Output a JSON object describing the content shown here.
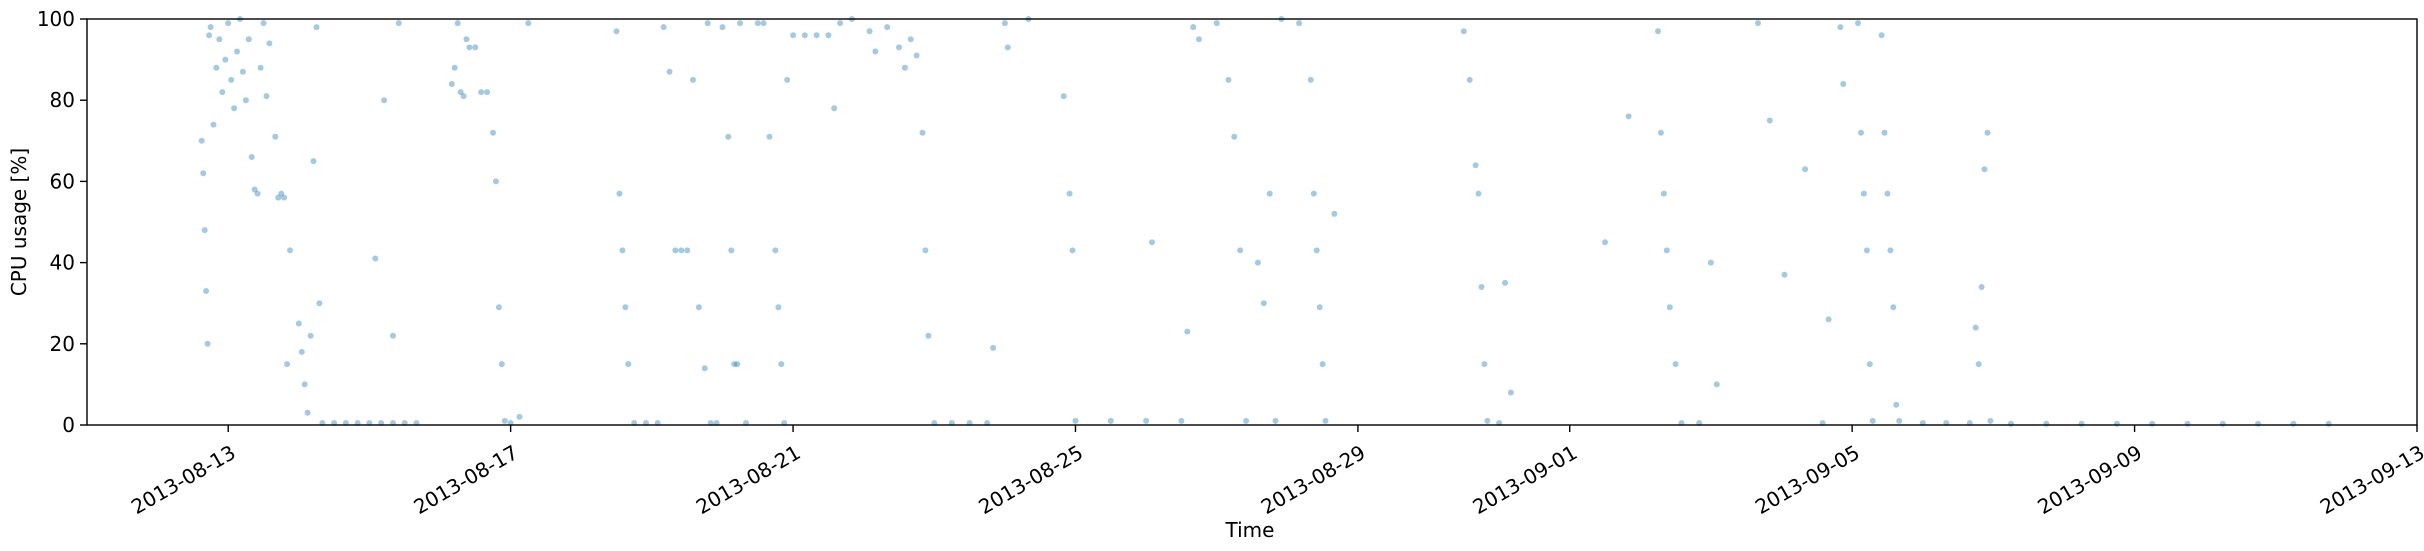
{
  "chart_data": {
    "type": "scatter",
    "title": "",
    "xlabel": "Time",
    "ylabel": "CPU usage [%]",
    "x_type": "date",
    "xlim": [
      "2013-08-11T00:00",
      "2013-09-13T00:00"
    ],
    "ylim": [
      0,
      100
    ],
    "grid": false,
    "legend": "none",
    "x_ticks": [
      "2013-08-13",
      "2013-08-17",
      "2013-08-21",
      "2013-08-25",
      "2013-08-29",
      "2013-09-01",
      "2013-09-05",
      "2013-09-09",
      "2013-09-13"
    ],
    "y_ticks": [
      0,
      20,
      40,
      60,
      80,
      100
    ],
    "colors": {
      "points": "#1f77b4",
      "axes": "#000000"
    },
    "point_opacity": 0.4,
    "point_style": "small translucent dots",
    "series": [
      {
        "values": [
          {
            "x": "2013-08-12T15:00",
            "y": 70
          },
          {
            "x": "2013-08-12T15:30",
            "y": 62
          },
          {
            "x": "2013-08-12T16:00",
            "y": 48
          },
          {
            "x": "2013-08-12T16:30",
            "y": 33
          },
          {
            "x": "2013-08-12T17:00",
            "y": 20
          },
          {
            "x": "2013-08-12T17:30",
            "y": 96
          },
          {
            "x": "2013-08-12T18:00",
            "y": 98
          },
          {
            "x": "2013-08-12T19:00",
            "y": 74
          },
          {
            "x": "2013-08-12T20:00",
            "y": 88
          },
          {
            "x": "2013-08-12T21:00",
            "y": 95
          },
          {
            "x": "2013-08-12T22:00",
            "y": 82
          },
          {
            "x": "2013-08-12T23:00",
            "y": 90
          },
          {
            "x": "2013-08-13T00:00",
            "y": 99
          },
          {
            "x": "2013-08-13T01:00",
            "y": 85
          },
          {
            "x": "2013-08-13T02:00",
            "y": 78
          },
          {
            "x": "2013-08-13T03:00",
            "y": 92
          },
          {
            "x": "2013-08-13T04:00",
            "y": 100
          },
          {
            "x": "2013-08-13T05:00",
            "y": 87
          },
          {
            "x": "2013-08-13T06:00",
            "y": 80
          },
          {
            "x": "2013-08-13T07:00",
            "y": 95
          },
          {
            "x": "2013-08-13T08:00",
            "y": 66
          },
          {
            "x": "2013-08-13T09:00",
            "y": 58
          },
          {
            "x": "2013-08-13T10:00",
            "y": 57
          },
          {
            "x": "2013-08-13T11:00",
            "y": 88
          },
          {
            "x": "2013-08-13T12:00",
            "y": 99
          },
          {
            "x": "2013-08-13T13:00",
            "y": 81
          },
          {
            "x": "2013-08-13T14:00",
            "y": 94
          },
          {
            "x": "2013-08-13T16:00",
            "y": 71
          },
          {
            "x": "2013-08-13T17:00",
            "y": 56
          },
          {
            "x": "2013-08-13T18:00",
            "y": 57
          },
          {
            "x": "2013-08-13T19:00",
            "y": 56
          },
          {
            "x": "2013-08-13T20:00",
            "y": 15
          },
          {
            "x": "2013-08-13T21:00",
            "y": 43
          },
          {
            "x": "2013-08-14T00:00",
            "y": 25
          },
          {
            "x": "2013-08-14T01:00",
            "y": 18
          },
          {
            "x": "2013-08-14T02:00",
            "y": 10
          },
          {
            "x": "2013-08-14T03:00",
            "y": 3
          },
          {
            "x": "2013-08-14T04:00",
            "y": 22
          },
          {
            "x": "2013-08-14T05:00",
            "y": 65
          },
          {
            "x": "2013-08-14T06:00",
            "y": 98
          },
          {
            "x": "2013-08-14T07:00",
            "y": 30
          },
          {
            "x": "2013-08-14T08:00",
            "y": 0.5
          },
          {
            "x": "2013-08-14T12:00",
            "y": 0.5
          },
          {
            "x": "2013-08-14T16:00",
            "y": 0.5
          },
          {
            "x": "2013-08-14T20:00",
            "y": 0.5
          },
          {
            "x": "2013-08-15T00:00",
            "y": 0.5
          },
          {
            "x": "2013-08-15T04:00",
            "y": 0.5
          },
          {
            "x": "2013-08-15T08:00",
            "y": 0.5
          },
          {
            "x": "2013-08-15T12:00",
            "y": 0.5
          },
          {
            "x": "2013-08-15T16:00",
            "y": 0.5
          },
          {
            "x": "2013-08-15T02:00",
            "y": 41
          },
          {
            "x": "2013-08-15T05:00",
            "y": 80
          },
          {
            "x": "2013-08-15T08:00",
            "y": 22
          },
          {
            "x": "2013-08-15T10:00",
            "y": 99
          },
          {
            "x": "2013-08-16T04:00",
            "y": 84
          },
          {
            "x": "2013-08-16T05:00",
            "y": 88
          },
          {
            "x": "2013-08-16T06:00",
            "y": 99
          },
          {
            "x": "2013-08-16T07:00",
            "y": 82
          },
          {
            "x": "2013-08-16T08:00",
            "y": 81
          },
          {
            "x": "2013-08-16T09:00",
            "y": 95
          },
          {
            "x": "2013-08-16T10:00",
            "y": 93
          },
          {
            "x": "2013-08-16T12:00",
            "y": 93
          },
          {
            "x": "2013-08-16T14:00",
            "y": 82
          },
          {
            "x": "2013-08-16T16:00",
            "y": 82
          },
          {
            "x": "2013-08-16T18:00",
            "y": 72
          },
          {
            "x": "2013-08-16T19:00",
            "y": 60
          },
          {
            "x": "2013-08-16T20:00",
            "y": 29
          },
          {
            "x": "2013-08-16T21:00",
            "y": 15
          },
          {
            "x": "2013-08-16T22:00",
            "y": 1
          },
          {
            "x": "2013-08-17T00:00",
            "y": 0.5
          },
          {
            "x": "2013-08-17T03:00",
            "y": 2
          },
          {
            "x": "2013-08-17T06:00",
            "y": 99
          },
          {
            "x": "2013-08-18T12:00",
            "y": 97
          },
          {
            "x": "2013-08-18T13:00",
            "y": 57
          },
          {
            "x": "2013-08-18T14:00",
            "y": 43
          },
          {
            "x": "2013-08-18T15:00",
            "y": 29
          },
          {
            "x": "2013-08-18T16:00",
            "y": 15
          },
          {
            "x": "2013-08-18T18:00",
            "y": 0.5
          },
          {
            "x": "2013-08-18T22:00",
            "y": 0.5
          },
          {
            "x": "2013-08-19T02:00",
            "y": 0.5
          },
          {
            "x": "2013-08-19T04:00",
            "y": 98
          },
          {
            "x": "2013-08-19T06:00",
            "y": 87
          },
          {
            "x": "2013-08-19T08:00",
            "y": 43
          },
          {
            "x": "2013-08-19T10:00",
            "y": 43
          },
          {
            "x": "2013-08-19T12:00",
            "y": 43
          },
          {
            "x": "2013-08-19T14:00",
            "y": 85
          },
          {
            "x": "2013-08-19T16:00",
            "y": 29
          },
          {
            "x": "2013-08-19T18:00",
            "y": 14
          },
          {
            "x": "2013-08-19T19:00",
            "y": 99
          },
          {
            "x": "2013-08-19T20:00",
            "y": 0.5
          },
          {
            "x": "2013-08-19T22:00",
            "y": 0.5
          },
          {
            "x": "2013-08-20T00:00",
            "y": 98
          },
          {
            "x": "2013-08-20T02:00",
            "y": 71
          },
          {
            "x": "2013-08-20T03:00",
            "y": 43
          },
          {
            "x": "2013-08-20T04:00",
            "y": 15
          },
          {
            "x": "2013-08-20T05:00",
            "y": 15
          },
          {
            "x": "2013-08-20T06:00",
            "y": 99
          },
          {
            "x": "2013-08-20T08:00",
            "y": 0.5
          },
          {
            "x": "2013-08-20T12:00",
            "y": 99
          },
          {
            "x": "2013-08-20T14:00",
            "y": 99
          },
          {
            "x": "2013-08-20T16:00",
            "y": 71
          },
          {
            "x": "2013-08-20T18:00",
            "y": 43
          },
          {
            "x": "2013-08-20T19:00",
            "y": 29
          },
          {
            "x": "2013-08-20T20:00",
            "y": 15
          },
          {
            "x": "2013-08-20T21:00",
            "y": 0.5
          },
          {
            "x": "2013-08-20T22:00",
            "y": 85
          },
          {
            "x": "2013-08-21T00:00",
            "y": 96
          },
          {
            "x": "2013-08-21T04:00",
            "y": 96
          },
          {
            "x": "2013-08-21T08:00",
            "y": 96
          },
          {
            "x": "2013-08-21T12:00",
            "y": 96
          },
          {
            "x": "2013-08-21T14:00",
            "y": 78
          },
          {
            "x": "2013-08-21T16:00",
            "y": 99
          },
          {
            "x": "2013-08-21T20:00",
            "y": 100
          },
          {
            "x": "2013-08-22T02:00",
            "y": 97
          },
          {
            "x": "2013-08-22T04:00",
            "y": 92
          },
          {
            "x": "2013-08-22T08:00",
            "y": 98
          },
          {
            "x": "2013-08-22T12:00",
            "y": 93
          },
          {
            "x": "2013-08-22T14:00",
            "y": 88
          },
          {
            "x": "2013-08-22T16:00",
            "y": 95
          },
          {
            "x": "2013-08-22T18:00",
            "y": 91
          },
          {
            "x": "2013-08-22T20:00",
            "y": 72
          },
          {
            "x": "2013-08-22T21:00",
            "y": 43
          },
          {
            "x": "2013-08-22T22:00",
            "y": 22
          },
          {
            "x": "2013-08-23T00:00",
            "y": 0.5
          },
          {
            "x": "2013-08-23T06:00",
            "y": 0.5
          },
          {
            "x": "2013-08-23T12:00",
            "y": 0.5
          },
          {
            "x": "2013-08-23T18:00",
            "y": 0.5
          },
          {
            "x": "2013-08-23T20:00",
            "y": 19
          },
          {
            "x": "2013-08-24T00:00",
            "y": 99
          },
          {
            "x": "2013-08-24T01:00",
            "y": 93
          },
          {
            "x": "2013-08-24T08:00",
            "y": 100
          },
          {
            "x": "2013-08-24T20:00",
            "y": 81
          },
          {
            "x": "2013-08-24T22:00",
            "y": 57
          },
          {
            "x": "2013-08-24T23:00",
            "y": 43
          },
          {
            "x": "2013-08-25T00:00",
            "y": 1
          },
          {
            "x": "2013-08-25T12:00",
            "y": 1
          },
          {
            "x": "2013-08-26T00:00",
            "y": 1
          },
          {
            "x": "2013-08-26T12:00",
            "y": 1
          },
          {
            "x": "2013-08-26T02:00",
            "y": 45
          },
          {
            "x": "2013-08-26T14:00",
            "y": 23
          },
          {
            "x": "2013-08-26T16:00",
            "y": 98
          },
          {
            "x": "2013-08-26T18:00",
            "y": 95
          },
          {
            "x": "2013-08-27T00:00",
            "y": 99
          },
          {
            "x": "2013-08-27T04:00",
            "y": 85
          },
          {
            "x": "2013-08-27T06:00",
            "y": 71
          },
          {
            "x": "2013-08-27T08:00",
            "y": 43
          },
          {
            "x": "2013-08-27T10:00",
            "y": 1
          },
          {
            "x": "2013-08-27T14:00",
            "y": 40
          },
          {
            "x": "2013-08-27T16:00",
            "y": 30
          },
          {
            "x": "2013-08-27T18:00",
            "y": 57
          },
          {
            "x": "2013-08-27T20:00",
            "y": 1
          },
          {
            "x": "2013-08-27T22:00",
            "y": 100
          },
          {
            "x": "2013-08-28T04:00",
            "y": 99
          },
          {
            "x": "2013-08-28T08:00",
            "y": 85
          },
          {
            "x": "2013-08-28T09:00",
            "y": 57
          },
          {
            "x": "2013-08-28T10:00",
            "y": 43
          },
          {
            "x": "2013-08-28T11:00",
            "y": 29
          },
          {
            "x": "2013-08-28T12:00",
            "y": 15
          },
          {
            "x": "2013-08-28T13:00",
            "y": 1
          },
          {
            "x": "2013-08-28T16:00",
            "y": 52
          },
          {
            "x": "2013-08-30T12:00",
            "y": 97
          },
          {
            "x": "2013-08-30T14:00",
            "y": 85
          },
          {
            "x": "2013-08-30T16:00",
            "y": 64
          },
          {
            "x": "2013-08-30T17:00",
            "y": 57
          },
          {
            "x": "2013-08-30T18:00",
            "y": 34
          },
          {
            "x": "2013-08-30T19:00",
            "y": 15
          },
          {
            "x": "2013-08-30T20:00",
            "y": 1
          },
          {
            "x": "2013-08-31T00:00",
            "y": 0.5
          },
          {
            "x": "2013-08-31T02:00",
            "y": 35
          },
          {
            "x": "2013-08-31T04:00",
            "y": 8
          },
          {
            "x": "2013-09-01T12:00",
            "y": 45
          },
          {
            "x": "2013-09-01T20:00",
            "y": 76
          },
          {
            "x": "2013-09-02T06:00",
            "y": 97
          },
          {
            "x": "2013-09-02T07:00",
            "y": 72
          },
          {
            "x": "2013-09-02T08:00",
            "y": 57
          },
          {
            "x": "2013-09-02T09:00",
            "y": 43
          },
          {
            "x": "2013-09-02T10:00",
            "y": 29
          },
          {
            "x": "2013-09-02T12:00",
            "y": 15
          },
          {
            "x": "2013-09-02T14:00",
            "y": 0.5
          },
          {
            "x": "2013-09-02T20:00",
            "y": 0.5
          },
          {
            "x": "2013-09-03T00:00",
            "y": 40
          },
          {
            "x": "2013-09-03T02:00",
            "y": 10
          },
          {
            "x": "2013-09-03T16:00",
            "y": 99
          },
          {
            "x": "2013-09-03T20:00",
            "y": 75
          },
          {
            "x": "2013-09-04T01:00",
            "y": 37
          },
          {
            "x": "2013-09-04T08:00",
            "y": 63
          },
          {
            "x": "2013-09-04T14:00",
            "y": 0.5
          },
          {
            "x": "2013-09-04T16:00",
            "y": 26
          },
          {
            "x": "2013-09-04T20:00",
            "y": 98
          },
          {
            "x": "2013-09-04T21:00",
            "y": 84
          },
          {
            "x": "2013-09-05T02:00",
            "y": 99
          },
          {
            "x": "2013-09-05T03:00",
            "y": 72
          },
          {
            "x": "2013-09-05T04:00",
            "y": 57
          },
          {
            "x": "2013-09-05T05:00",
            "y": 43
          },
          {
            "x": "2013-09-05T06:00",
            "y": 15
          },
          {
            "x": "2013-09-05T07:00",
            "y": 1
          },
          {
            "x": "2013-09-05T10:00",
            "y": 96
          },
          {
            "x": "2013-09-05T11:00",
            "y": 72
          },
          {
            "x": "2013-09-05T12:00",
            "y": 57
          },
          {
            "x": "2013-09-05T13:00",
            "y": 43
          },
          {
            "x": "2013-09-05T14:00",
            "y": 29
          },
          {
            "x": "2013-09-05T15:00",
            "y": 5
          },
          {
            "x": "2013-09-05T16:00",
            "y": 1
          },
          {
            "x": "2013-09-06T00:00",
            "y": 0.5
          },
          {
            "x": "2013-09-06T08:00",
            "y": 0.5
          },
          {
            "x": "2013-09-06T16:00",
            "y": 0.5
          },
          {
            "x": "2013-09-06T18:00",
            "y": 24
          },
          {
            "x": "2013-09-06T19:00",
            "y": 15
          },
          {
            "x": "2013-09-06T20:00",
            "y": 34
          },
          {
            "x": "2013-09-06T21:00",
            "y": 63
          },
          {
            "x": "2013-09-06T22:00",
            "y": 72
          },
          {
            "x": "2013-09-06T23:00",
            "y": 1
          },
          {
            "x": "2013-09-07T06:00",
            "y": 0.3
          },
          {
            "x": "2013-09-07T18:00",
            "y": 0.3
          },
          {
            "x": "2013-09-08T06:00",
            "y": 0.3
          },
          {
            "x": "2013-09-08T18:00",
            "y": 0.3
          },
          {
            "x": "2013-09-09T06:00",
            "y": 0.3
          },
          {
            "x": "2013-09-09T18:00",
            "y": 0.3
          },
          {
            "x": "2013-09-10T06:00",
            "y": 0.3
          },
          {
            "x": "2013-09-10T18:00",
            "y": 0.3
          },
          {
            "x": "2013-09-11T06:00",
            "y": 0.3
          },
          {
            "x": "2013-09-11T18:00",
            "y": 0.3
          }
        ]
      }
    ]
  }
}
